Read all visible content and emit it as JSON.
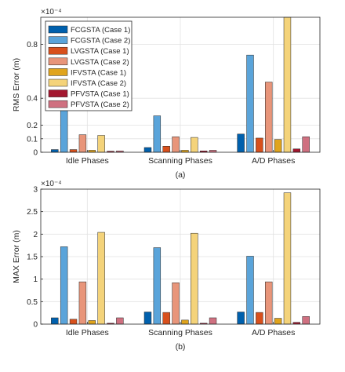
{
  "figure": {
    "legend_labels": [
      "FCGSTA (Case 1)",
      "FCGSTA (Case 2)",
      "LVGSTA (Case 1)",
      "LVGSTA (Case 2)",
      "IFVSTA (Case 1)",
      "IFVSTA (Case 2)",
      "PFVSTA (Case 1)",
      "PFVSTA (Case 2)"
    ],
    "series_colors": [
      "#0060ad",
      "#5aa4da",
      "#d8501c",
      "#e8957a",
      "#e0a41c",
      "#f4d37a",
      "#a3172f",
      "#cf7080"
    ]
  },
  "chart_data": [
    {
      "type": "bar",
      "panel_label": "(a)",
      "ylabel": "RMS Error (m)",
      "exponent_label": "×10⁻⁴",
      "ylim": [
        0,
        1.0
      ],
      "yticks": [
        0,
        0.1,
        0.2,
        0.4,
        0.8
      ],
      "ytick_labels": [
        "0",
        "0.1",
        "0.2",
        "0.4",
        "0.8"
      ],
      "categories": [
        "Idle Phases",
        "Scanning Phases",
        "A/D Phases"
      ],
      "grid": true,
      "legend_position": "top-left",
      "series": [
        {
          "name": "FCGSTA (Case 1)",
          "values": [
            0.02,
            0.035,
            0.135
          ]
        },
        {
          "name": "FCGSTA (Case 2)",
          "values": [
            0.31,
            0.27,
            0.72
          ]
        },
        {
          "name": "LVGSTA (Case 1)",
          "values": [
            0.02,
            0.045,
            0.105
          ]
        },
        {
          "name": "LVGSTA (Case 2)",
          "values": [
            0.13,
            0.115,
            0.52
          ]
        },
        {
          "name": "IFVSTA (Case 1)",
          "values": [
            0.015,
            0.015,
            0.095
          ]
        },
        {
          "name": "IFVSTA (Case 2)",
          "values": [
            0.125,
            0.11,
            1.0
          ]
        },
        {
          "name": "PFVSTA (Case 1)",
          "values": [
            0.008,
            0.01,
            0.025
          ]
        },
        {
          "name": "PFVSTA (Case 2)",
          "values": [
            0.01,
            0.015,
            0.115
          ]
        }
      ]
    },
    {
      "type": "bar",
      "panel_label": "(b)",
      "ylabel": "MAX Error (m)",
      "exponent_label": "×10⁻⁴",
      "ylim": [
        0,
        3
      ],
      "yticks": [
        0,
        0.5,
        1,
        1.5,
        2,
        2.5,
        3
      ],
      "ytick_labels": [
        "0",
        "0.5",
        "1",
        "1.5",
        "2",
        "2.5",
        "3"
      ],
      "categories": [
        "Idle Phases",
        "Scanning Phases",
        "A/D Phases"
      ],
      "grid": true,
      "series": [
        {
          "name": "FCGSTA (Case 1)",
          "values": [
            0.14,
            0.27,
            0.27
          ]
        },
        {
          "name": "FCGSTA (Case 2)",
          "values": [
            1.72,
            1.7,
            1.51
          ]
        },
        {
          "name": "LVGSTA (Case 1)",
          "values": [
            0.11,
            0.26,
            0.26
          ]
        },
        {
          "name": "LVGSTA (Case 2)",
          "values": [
            0.94,
            0.92,
            0.94
          ]
        },
        {
          "name": "IFVSTA (Case 1)",
          "values": [
            0.08,
            0.09,
            0.13
          ]
        },
        {
          "name": "IFVSTA (Case 2)",
          "values": [
            2.04,
            2.02,
            2.92
          ]
        },
        {
          "name": "PFVSTA (Case 1)",
          "values": [
            0.02,
            0.02,
            0.04
          ]
        },
        {
          "name": "PFVSTA (Case 2)",
          "values": [
            0.14,
            0.14,
            0.17
          ]
        }
      ]
    }
  ]
}
